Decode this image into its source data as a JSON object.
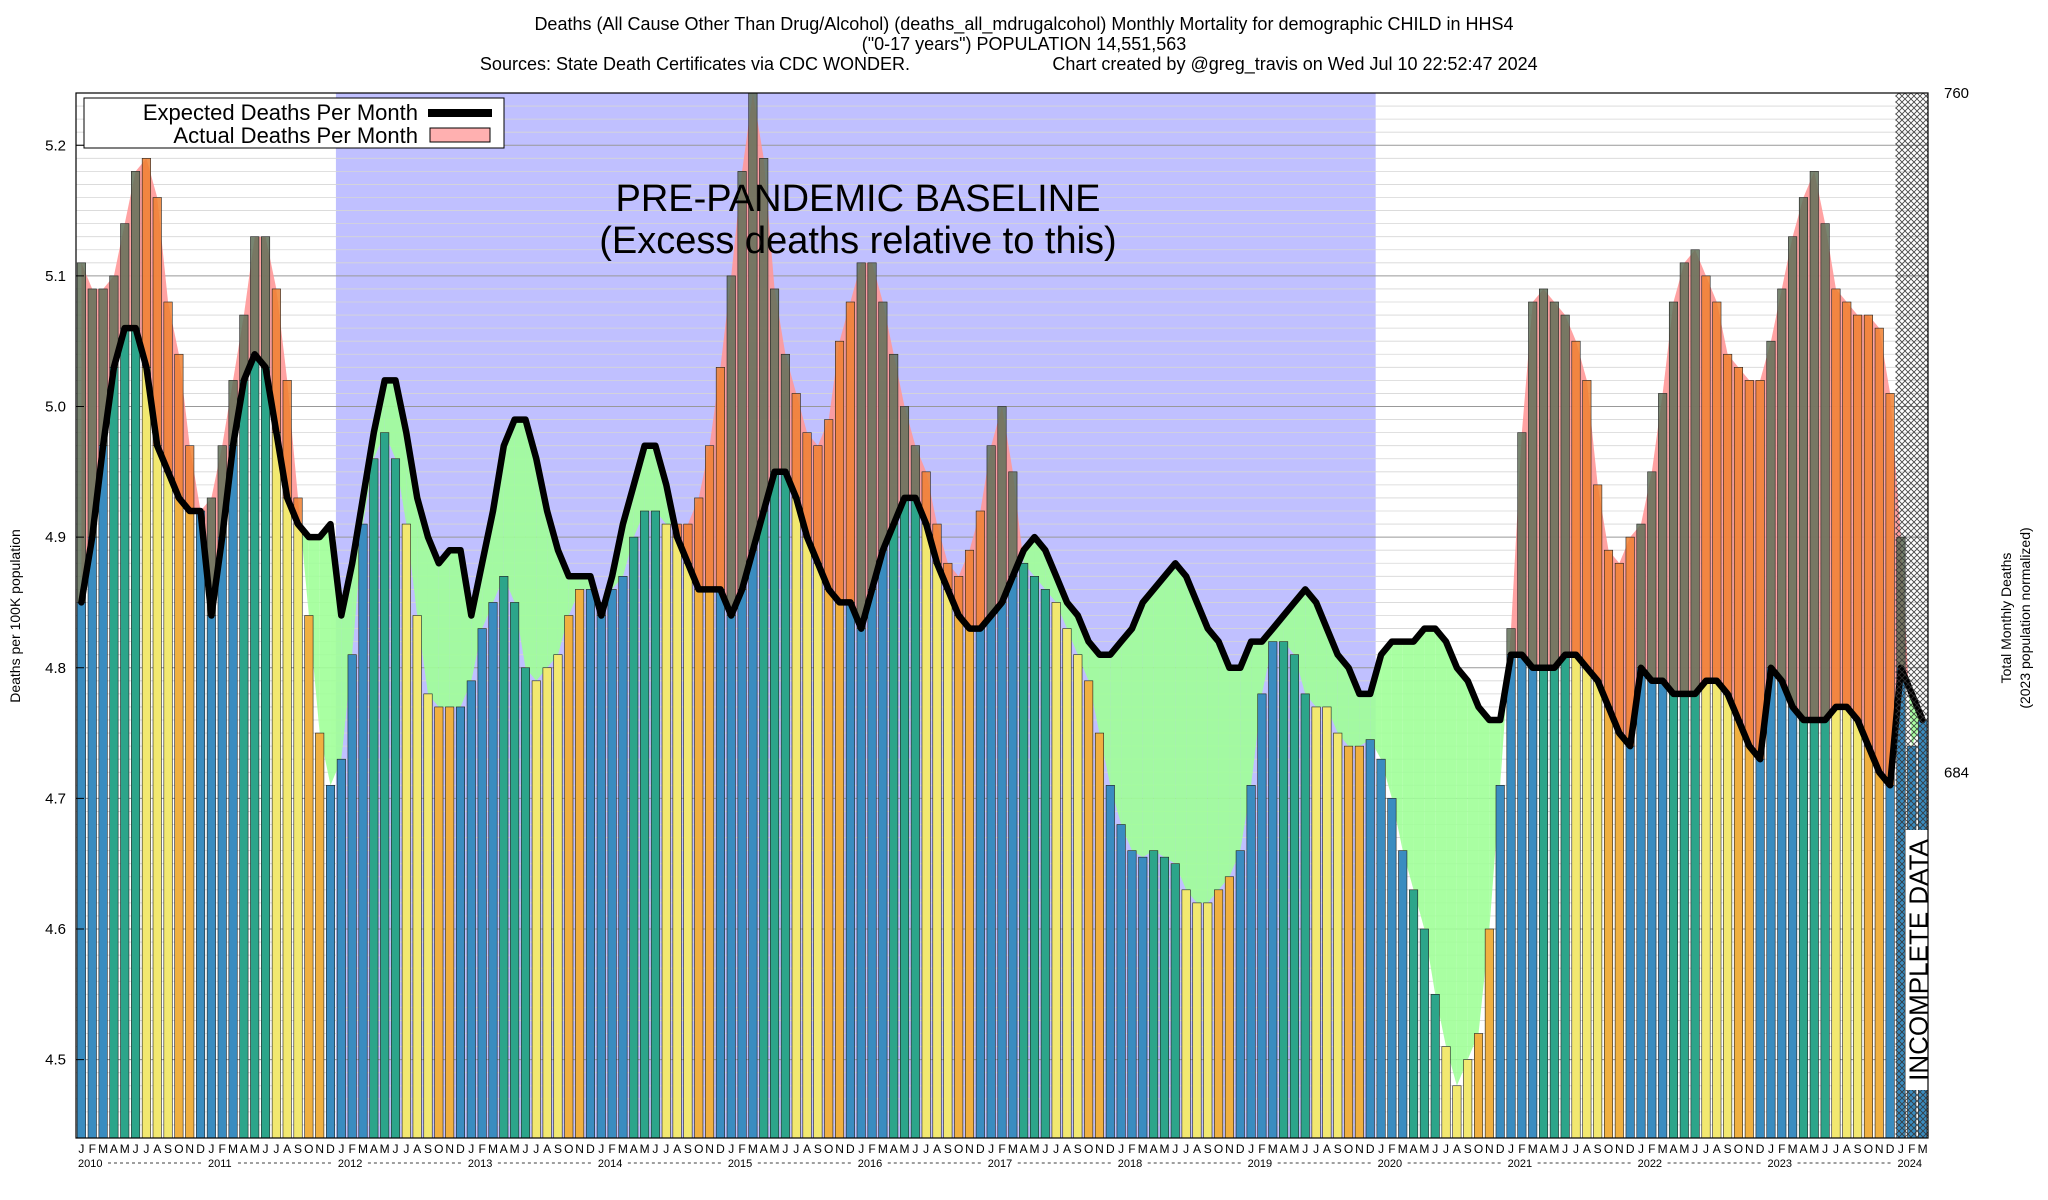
{
  "title_lines": [
    "Deaths (All Cause Other Than Drug/Alcohol) (deaths_all_mdrugalcohol) Monthly Mortality for demographic CHILD in HHS4",
    "(\"0-17 years\") POPULATION 14,551,563",
    "Sources: State Death Certificates via CDC WONDER.",
    "Chart created by @greg_travis on Wed Jul 10 22:52:47 2024"
  ],
  "annotation": [
    "PRE-PANDEMIC BASELINE",
    "(Excess deaths relative to this)"
  ],
  "incomplete_label": "INCOMPLETE DATA",
  "colors": {
    "baseline_region": "#c0c0ff",
    "excess_fill": "#ff9898",
    "deficit_fill": "#a0ff98",
    "expected_line": "#000000",
    "season_blue": "#3a8cc0",
    "season_teal": "#2ca58a",
    "season_yellow": "#f2e870",
    "season_orange": "#f0b040"
  },
  "chart_data": {
    "type": "bar",
    "title": "Deaths (All Cause Other Than Drug/Alcohol) (deaths_all_mdrugalcohol) Monthly Mortality for demographic CHILD in HHS4",
    "ylabel": "Deaths per 100K population",
    "y2label": [
      "Total Monthly Deaths",
      "(2023 population normalized)"
    ],
    "ylim": [
      4.44,
      5.24
    ],
    "yticks": [
      4.5,
      4.6,
      4.7,
      4.8,
      4.9,
      5.0,
      5.1,
      5.2
    ],
    "y2ticks": [
      {
        "label": "760",
        "value": 5.24
      },
      {
        "label": "684",
        "value": 4.72
      }
    ],
    "start": "2010-01",
    "month_letters": [
      "J",
      "F",
      "M",
      "A",
      "M",
      "J",
      "J",
      "A",
      "S",
      "O",
      "N",
      "D"
    ],
    "years": [
      "2010",
      "2011",
      "2012",
      "2013",
      "2014",
      "2015",
      "2016",
      "2017",
      "2018",
      "2019",
      "2020",
      "2021",
      "2022",
      "2023",
      "2024"
    ],
    "baseline_period": [
      "2012-01",
      "2019-12"
    ],
    "incomplete_period": [
      "2024-01",
      "2024-03"
    ],
    "legend": [
      "Expected Deaths Per Month",
      "Actual Deaths Per Month"
    ],
    "legend_position": "top-left",
    "grid": true,
    "series": [
      {
        "name": "Actual Deaths Per Month",
        "values": [
          5.11,
          5.09,
          5.09,
          5.1,
          5.14,
          5.18,
          5.19,
          5.16,
          5.08,
          5.04,
          4.97,
          4.92,
          4.93,
          4.97,
          5.02,
          5.07,
          5.13,
          5.13,
          5.09,
          5.02,
          4.93,
          4.84,
          4.75,
          4.71,
          4.73,
          4.81,
          4.91,
          4.96,
          4.98,
          4.96,
          4.91,
          4.84,
          4.78,
          4.77,
          4.77,
          4.77,
          4.79,
          4.83,
          4.85,
          4.87,
          4.85,
          4.8,
          4.79,
          4.8,
          4.81,
          4.84,
          4.86,
          4.86,
          4.85,
          4.86,
          4.87,
          4.9,
          4.92,
          4.92,
          4.91,
          4.91,
          4.91,
          4.93,
          4.97,
          5.03,
          5.1,
          5.18,
          5.24,
          5.19,
          5.09,
          5.04,
          5.01,
          4.98,
          4.97,
          4.99,
          5.05,
          5.08,
          5.11,
          5.11,
          5.08,
          5.04,
          5.0,
          4.97,
          4.95,
          4.91,
          4.88,
          4.87,
          4.89,
          4.92,
          4.97,
          5.0,
          4.95,
          4.88,
          4.87,
          4.86,
          4.85,
          4.83,
          4.81,
          4.79,
          4.75,
          4.71,
          4.68,
          4.66,
          4.655,
          4.66,
          4.655,
          4.65,
          4.63,
          4.62,
          4.62,
          4.63,
          4.64,
          4.66,
          4.71,
          4.78,
          4.82,
          4.82,
          4.81,
          4.78,
          4.77,
          4.77,
          4.75,
          4.74,
          4.74,
          4.745,
          4.73,
          4.7,
          4.66,
          4.63,
          4.6,
          4.55,
          4.51,
          4.48,
          4.5,
          4.52,
          4.6,
          4.71,
          4.83,
          4.98,
          5.08,
          5.09,
          5.08,
          5.07,
          5.05,
          5.02,
          4.94,
          4.89,
          4.88,
          4.9,
          4.91,
          4.95,
          5.01,
          5.08,
          5.11,
          5.12,
          5.1,
          5.08,
          5.04,
          5.03,
          5.02,
          5.02,
          5.05,
          5.09,
          5.13,
          5.16,
          5.18,
          5.14,
          5.09,
          5.08,
          5.07,
          5.07,
          5.06,
          5.01,
          4.9,
          4.74,
          4.76
        ]
      },
      {
        "name": "Expected Deaths Per Month",
        "values": [
          4.85,
          4.9,
          4.97,
          5.03,
          5.06,
          5.06,
          5.03,
          4.97,
          4.95,
          4.93,
          4.92,
          4.92,
          4.84,
          4.9,
          4.97,
          5.02,
          5.04,
          5.03,
          4.98,
          4.93,
          4.91,
          4.9,
          4.9,
          4.91,
          4.84,
          4.88,
          4.93,
          4.98,
          5.02,
          5.02,
          4.98,
          4.93,
          4.9,
          4.88,
          4.89,
          4.89,
          4.84,
          4.88,
          4.92,
          4.97,
          4.99,
          4.99,
          4.96,
          4.92,
          4.89,
          4.87,
          4.87,
          4.87,
          4.84,
          4.87,
          4.91,
          4.94,
          4.97,
          4.97,
          4.94,
          4.9,
          4.88,
          4.86,
          4.86,
          4.86,
          4.84,
          4.86,
          4.89,
          4.92,
          4.95,
          4.95,
          4.93,
          4.9,
          4.88,
          4.86,
          4.85,
          4.85,
          4.83,
          4.86,
          4.89,
          4.91,
          4.93,
          4.93,
          4.91,
          4.88,
          4.86,
          4.84,
          4.83,
          4.83,
          4.84,
          4.85,
          4.87,
          4.89,
          4.9,
          4.89,
          4.87,
          4.85,
          4.84,
          4.82,
          4.81,
          4.81,
          4.82,
          4.83,
          4.85,
          4.86,
          4.87,
          4.88,
          4.87,
          4.85,
          4.83,
          4.82,
          4.8,
          4.8,
          4.82,
          4.82,
          4.83,
          4.84,
          4.85,
          4.86,
          4.85,
          4.83,
          4.81,
          4.8,
          4.78,
          4.78,
          4.81,
          4.82,
          4.82,
          4.82,
          4.83,
          4.83,
          4.82,
          4.8,
          4.79,
          4.77,
          4.76,
          4.76,
          4.81,
          4.81,
          4.8,
          4.8,
          4.8,
          4.81,
          4.81,
          4.8,
          4.79,
          4.77,
          4.75,
          4.74,
          4.8,
          4.79,
          4.79,
          4.78,
          4.78,
          4.78,
          4.79,
          4.79,
          4.78,
          4.76,
          4.74,
          4.73,
          4.8,
          4.79,
          4.77,
          4.76,
          4.76,
          4.76,
          4.77,
          4.77,
          4.76,
          4.74,
          4.72,
          4.71,
          4.8,
          4.78,
          4.76
        ]
      }
    ]
  }
}
